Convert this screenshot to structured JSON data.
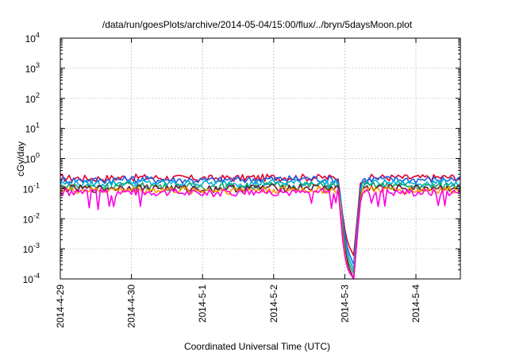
{
  "chart_data": {
    "type": "line",
    "title": "/data/run/goesPlots/archive/2014-05-04/15:00/flux/../bryn/5daysMoon.plot",
    "xlabel": "Coordinated Universal Time (UTC)",
    "ylabel": "cGy/day",
    "yscale": "log",
    "ylim": [
      0.0001,
      10000
    ],
    "y_ticks": [
      {
        "base": "10",
        "exp": "-4",
        "value": 0.0001
      },
      {
        "base": "10",
        "exp": "-3",
        "value": 0.001
      },
      {
        "base": "10",
        "exp": "-2",
        "value": 0.01
      },
      {
        "base": "10",
        "exp": "-1",
        "value": 0.1
      },
      {
        "base": "10",
        "exp": "0",
        "value": 1
      },
      {
        "base": "10",
        "exp": "1",
        "value": 10
      },
      {
        "base": "10",
        "exp": "2",
        "value": 100
      },
      {
        "base": "10",
        "exp": "3",
        "value": 1000
      },
      {
        "base": "10",
        "exp": "4",
        "value": 10000
      }
    ],
    "xlim": [
      "2014-04-29T00:00",
      "2014-05-04T15:00"
    ],
    "x_ticks": [
      "2014-4-29",
      "2014-4-30",
      "2014-5-1",
      "2014-5-2",
      "2014-5-3",
      "2014-5-4"
    ],
    "grid": true,
    "legend": "none",
    "gap": {
      "start": "2014-05-02T22:30",
      "end": "2014-05-03T05:00"
    },
    "series": [
      {
        "color": "#e3002a",
        "level": 0.23,
        "x": [
          "2014-04-29T00:00",
          "2014-04-29T12:00",
          "2014-04-30T00:00",
          "2014-04-30T12:00",
          "2014-05-01T00:00",
          "2014-05-01T12:00",
          "2014-05-02T00:00",
          "2014-05-02T12:00",
          "2014-05-02T22:00",
          "2014-05-02T23:30",
          "2014-05-03T01:00",
          "2014-05-03T03:00",
          "2014-05-03T05:30",
          "2014-05-03T12:00",
          "2014-05-04T00:00",
          "2014-05-04T12:00",
          "2014-05-04T15:00"
        ],
        "y": [
          0.23,
          0.22,
          0.24,
          0.23,
          0.22,
          0.23,
          0.24,
          0.24,
          0.23,
          0.008,
          0.0015,
          0.0006,
          0.23,
          0.24,
          0.23,
          0.24,
          0.24
        ]
      },
      {
        "color": "#1f5fe0",
        "level": 0.2,
        "x": [
          "2014-04-29T00:00",
          "2014-04-29T12:00",
          "2014-04-30T00:00",
          "2014-04-30T12:00",
          "2014-05-01T00:00",
          "2014-05-01T12:00",
          "2014-05-02T00:00",
          "2014-05-02T12:00",
          "2014-05-02T22:00",
          "2014-05-02T23:30",
          "2014-05-03T01:00",
          "2014-05-03T03:00",
          "2014-05-03T05:30",
          "2014-05-03T12:00",
          "2014-05-04T00:00",
          "2014-05-04T12:00",
          "2014-05-04T15:00"
        ],
        "y": [
          0.2,
          0.19,
          0.21,
          0.2,
          0.19,
          0.2,
          0.21,
          0.22,
          0.2,
          0.006,
          0.0009,
          0.0003,
          0.2,
          0.21,
          0.2,
          0.21,
          0.2
        ]
      },
      {
        "color": "#00b0d8",
        "level": 0.15,
        "x": [
          "2014-04-29T00:00",
          "2014-04-29T12:00",
          "2014-04-30T00:00",
          "2014-04-30T12:00",
          "2014-05-01T00:00",
          "2014-05-01T12:00",
          "2014-05-02T00:00",
          "2014-05-02T12:00",
          "2014-05-02T22:00",
          "2014-05-02T23:30",
          "2014-05-03T01:00",
          "2014-05-03T03:00",
          "2014-05-03T05:30",
          "2014-05-03T12:00",
          "2014-05-04T00:00",
          "2014-05-04T12:00",
          "2014-05-04T15:00"
        ],
        "y": [
          0.15,
          0.15,
          0.16,
          0.15,
          0.15,
          0.15,
          0.16,
          0.16,
          0.15,
          0.004,
          0.0006,
          0.0002,
          0.15,
          0.16,
          0.15,
          0.16,
          0.15
        ]
      },
      {
        "color": "#10a870",
        "level": 0.12,
        "x": [
          "2014-04-29T00:00",
          "2014-04-29T12:00",
          "2014-04-30T00:00",
          "2014-04-30T12:00",
          "2014-05-01T00:00",
          "2014-05-01T12:00",
          "2014-05-02T00:00",
          "2014-05-02T12:00",
          "2014-05-02T22:00",
          "2014-05-02T23:30",
          "2014-05-03T01:00",
          "2014-05-03T03:00",
          "2014-05-03T05:30",
          "2014-05-03T12:00",
          "2014-05-04T00:00",
          "2014-05-04T12:00",
          "2014-05-04T15:00"
        ],
        "y": [
          0.12,
          0.12,
          0.13,
          0.12,
          0.12,
          0.12,
          0.13,
          0.13,
          0.12,
          0.003,
          0.0004,
          0.00015,
          0.12,
          0.13,
          0.12,
          0.13,
          0.12
        ]
      },
      {
        "color": "#6b1a2a",
        "level": 0.105,
        "x": [
          "2014-04-29T00:00",
          "2014-04-29T12:00",
          "2014-04-30T00:00",
          "2014-04-30T12:00",
          "2014-05-01T00:00",
          "2014-05-01T12:00",
          "2014-05-02T00:00",
          "2014-05-02T12:00",
          "2014-05-02T22:00",
          "2014-05-02T23:30",
          "2014-05-03T01:00",
          "2014-05-03T03:00",
          "2014-05-03T05:30",
          "2014-05-03T12:00",
          "2014-05-04T00:00",
          "2014-05-04T12:00",
          "2014-05-04T15:00"
        ],
        "y": [
          0.105,
          0.1,
          0.11,
          0.105,
          0.1,
          0.105,
          0.11,
          0.11,
          0.105,
          0.002,
          0.0003,
          0.0001,
          0.105,
          0.11,
          0.105,
          0.11,
          0.105
        ]
      },
      {
        "color": "#ff9900",
        "level": 0.09,
        "x": [
          "2014-04-29T00:00",
          "2014-04-29T12:00",
          "2014-04-30T00:00",
          "2014-04-30T12:00",
          "2014-05-01T00:00",
          "2014-05-01T12:00",
          "2014-05-02T00:00",
          "2014-05-02T12:00",
          "2014-05-02T22:00",
          "2014-05-02T23:30",
          "2014-05-03T01:00",
          "2014-05-03T03:00",
          "2014-05-03T05:30",
          "2014-05-03T12:00",
          "2014-05-04T00:00",
          "2014-05-04T12:00",
          "2014-05-04T15:00"
        ],
        "y": [
          0.09,
          0.088,
          0.092,
          0.09,
          0.088,
          0.09,
          0.092,
          0.092,
          0.09,
          0.0015,
          0.0002,
          0.0001,
          0.09,
          0.092,
          0.09,
          0.092,
          0.09
        ]
      },
      {
        "color": "#ff00e0",
        "level": 0.08,
        "x": [
          "2014-04-29T00:00",
          "2014-04-29T12:00",
          "2014-04-30T00:00",
          "2014-04-30T12:00",
          "2014-05-01T00:00",
          "2014-05-01T12:00",
          "2014-05-02T00:00",
          "2014-05-02T12:00",
          "2014-05-02T22:00",
          "2014-05-02T23:30",
          "2014-05-03T01:00",
          "2014-05-03T03:00",
          "2014-05-03T05:30",
          "2014-05-03T12:00",
          "2014-05-04T00:00",
          "2014-05-04T12:00",
          "2014-05-04T15:00"
        ],
        "y": [
          0.08,
          0.075,
          0.082,
          0.078,
          0.072,
          0.078,
          0.08,
          0.076,
          0.08,
          0.001,
          0.0002,
          0.0001,
          0.08,
          0.08,
          0.078,
          0.08,
          0.078
        ]
      }
    ]
  }
}
